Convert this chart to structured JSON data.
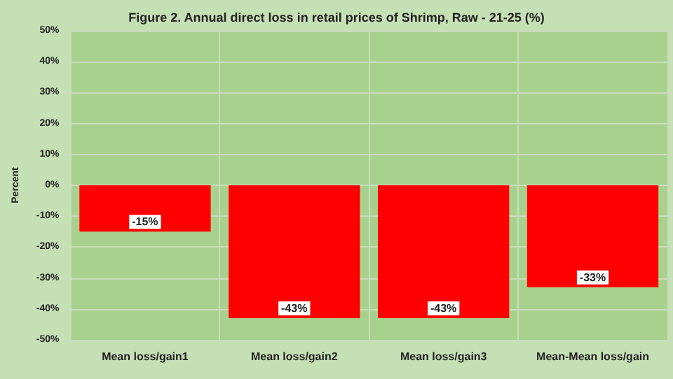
{
  "chart_data": {
    "type": "bar",
    "title": "Figure 2. Annual direct loss in retail prices of Shrimp, Raw - 21-25 (%)",
    "ylabel": "Percent",
    "categories": [
      "Mean loss/gain1",
      "Mean loss/gain2",
      "Mean loss/gain3",
      "Mean-Mean loss/gain"
    ],
    "values": [
      -15,
      -43,
      -43,
      -33
    ],
    "color": "#ff0000",
    "value_labels": [
      "-15%",
      "-43%",
      "-43%",
      "-33%"
    ],
    "ylim": [
      -50,
      50
    ],
    "yticks": [
      {
        "value": -50,
        "label": "-50%"
      },
      {
        "value": -40,
        "label": "-40%"
      },
      {
        "value": -30,
        "label": "-30%"
      },
      {
        "value": -20,
        "label": "-20%"
      },
      {
        "value": -10,
        "label": "-10%"
      },
      {
        "value": 0,
        "label": "0%"
      },
      {
        "value": 10,
        "label": "10%"
      },
      {
        "value": 20,
        "label": "20%"
      },
      {
        "value": 30,
        "label": "30%"
      },
      {
        "value": 40,
        "label": "40%"
      },
      {
        "value": 50,
        "label": "50%"
      }
    ],
    "grid": true
  }
}
